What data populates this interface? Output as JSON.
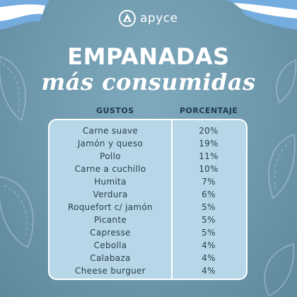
{
  "brand": {
    "logo_text": "apyce"
  },
  "header": {
    "title": "EMPANADAS",
    "subtitle": "más consumidas"
  },
  "table": {
    "columns": [
      "GUSTOS",
      "PORCENTAJE"
    ],
    "rows": [
      {
        "gusto": "Carne suave",
        "porcentaje": "20%"
      },
      {
        "gusto": "Jamón y queso",
        "porcentaje": "19%"
      },
      {
        "gusto": "Pollo",
        "porcentaje": "11%"
      },
      {
        "gusto": "Carne a cuchillo",
        "porcentaje": "10%"
      },
      {
        "gusto": "Humita",
        "porcentaje": "7%"
      },
      {
        "gusto": "Verdura",
        "porcentaje": "6%"
      },
      {
        "gusto": "Roquefort c/ jamón",
        "porcentaje": "5%"
      },
      {
        "gusto": "Picante",
        "porcentaje": "5%"
      },
      {
        "gusto": "Capresse",
        "porcentaje": "5%"
      },
      {
        "gusto": "Cebolla",
        "porcentaje": "4%"
      },
      {
        "gusto": "Calabaza",
        "porcentaje": "4%"
      },
      {
        "gusto": "Cheese burguer",
        "porcentaje": "4%"
      }
    ]
  },
  "colors": {
    "background": "#6F9AAE",
    "table_fill": "#B7D7E8",
    "flag_blue": "#74ACDF",
    "text_dark": "#2A3E4C"
  }
}
